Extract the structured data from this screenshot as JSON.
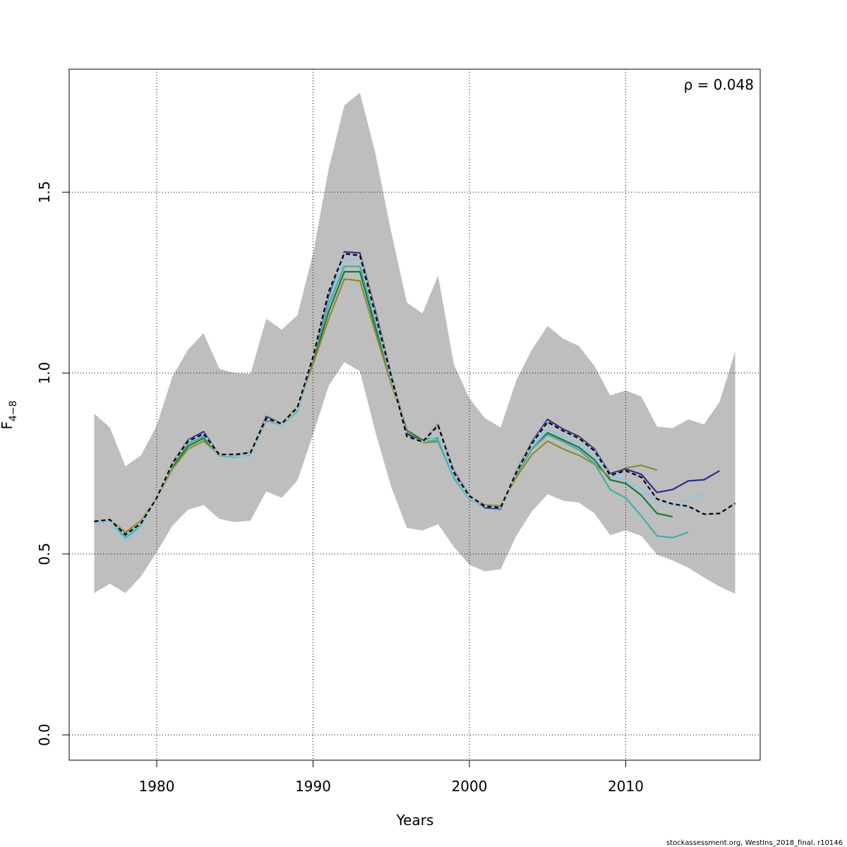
{
  "chart_data": {
    "type": "line",
    "title": "",
    "xlabel": "Years",
    "ylabel": {
      "main": "F",
      "sub": "4−8"
    },
    "annotation": "ρ = 0.048",
    "footer": "stockassessment.org, WestIns_2018_final, r10146",
    "xlim": [
      1974.4,
      2018.6
    ],
    "ylim": [
      -0.07,
      1.84
    ],
    "x_ticks": [
      1980,
      1990,
      2000,
      2010
    ],
    "y_ticks": [
      0.0,
      0.5,
      1.0,
      1.5
    ],
    "x_tick_labels": [
      "1980",
      "1990",
      "2000",
      "2010"
    ],
    "y_tick_labels": [
      "0.0",
      "0.5",
      "1.0",
      "1.5"
    ],
    "grid": true,
    "confidence_band": {
      "color": "#bebebe",
      "x": [
        1976,
        1977,
        1978,
        1979,
        1980,
        1981,
        1982,
        1983,
        1984,
        1985,
        1986,
        1987,
        1988,
        1989,
        1990,
        1991,
        1992,
        1993,
        1994,
        1995,
        1996,
        1997,
        1998,
        1999,
        2000,
        2001,
        2002,
        2003,
        2004,
        2005,
        2006,
        2007,
        2008,
        2009,
        2010,
        2011,
        2012,
        2013,
        2014,
        2015,
        2016,
        2017
      ],
      "lower": [
        0.392,
        0.418,
        0.392,
        0.438,
        0.505,
        0.578,
        0.622,
        0.635,
        0.597,
        0.588,
        0.592,
        0.673,
        0.655,
        0.703,
        0.83,
        0.965,
        1.03,
        1.005,
        0.835,
        0.685,
        0.572,
        0.565,
        0.582,
        0.52,
        0.47,
        0.452,
        0.458,
        0.55,
        0.618,
        0.665,
        0.647,
        0.642,
        0.612,
        0.552,
        0.565,
        0.55,
        0.498,
        0.482,
        0.462,
        0.435,
        0.41,
        0.39
      ],
      "upper": [
        0.888,
        0.85,
        0.742,
        0.773,
        0.855,
        0.99,
        1.065,
        1.11,
        1.012,
        1.0,
        0.998,
        1.15,
        1.12,
        1.16,
        1.33,
        1.565,
        1.74,
        1.775,
        1.605,
        1.39,
        1.195,
        1.165,
        1.27,
        1.025,
        0.93,
        0.875,
        0.85,
        0.98,
        1.065,
        1.13,
        1.095,
        1.075,
        1.02,
        0.938,
        0.952,
        0.935,
        0.852,
        0.848,
        0.872,
        0.858,
        0.92,
        1.06
      ]
    },
    "series": [
      {
        "color": "#1b7837",
        "width": 2.2,
        "x": [
          1976,
          1977,
          1978,
          1979,
          1980,
          1981,
          1982,
          1983,
          1984,
          1985,
          1986,
          1987,
          1988,
          1989,
          1990,
          1991,
          1992,
          1993,
          1994,
          1995,
          1996,
          1997,
          1998,
          1999,
          2000,
          2001,
          2002,
          2003,
          2004,
          2005,
          2006,
          2007,
          2008,
          2009,
          2010,
          2011,
          2012,
          2013
        ],
        "y": [
          0.59,
          0.595,
          0.553,
          0.585,
          0.655,
          0.74,
          0.798,
          0.82,
          0.772,
          0.772,
          0.782,
          0.868,
          0.862,
          0.905,
          1.03,
          1.17,
          1.28,
          1.28,
          1.125,
          0.975,
          0.842,
          0.815,
          0.822,
          0.718,
          0.66,
          0.635,
          0.633,
          0.72,
          0.79,
          0.835,
          0.815,
          0.795,
          0.76,
          0.705,
          0.695,
          0.662,
          0.612,
          0.603
        ]
      },
      {
        "color": "#8c8c2e",
        "width": 2.2,
        "x": [
          1976,
          1977,
          1978,
          1979,
          1980,
          1981,
          1982,
          1983,
          1984,
          1985,
          1986,
          1987,
          1988,
          1989,
          1990,
          1991,
          1992,
          1993,
          1994,
          1995,
          1996,
          1997,
          1998,
          1999,
          2000,
          2001,
          2002,
          2003,
          2004,
          2005,
          2006,
          2007,
          2008,
          2009,
          2010,
          2011,
          2012
        ],
        "y": [
          0.588,
          0.595,
          0.56,
          0.592,
          0.655,
          0.735,
          0.79,
          0.812,
          0.775,
          0.775,
          0.782,
          0.868,
          0.862,
          0.908,
          1.025,
          1.15,
          1.26,
          1.255,
          1.11,
          0.97,
          0.84,
          0.808,
          0.81,
          0.712,
          0.66,
          0.635,
          0.633,
          0.712,
          0.775,
          0.812,
          0.79,
          0.773,
          0.748,
          0.712,
          0.738,
          0.745,
          0.732
        ]
      },
      {
        "color": "#40b0a6",
        "width": 2.2,
        "x": [
          1976,
          1977,
          1978,
          1979,
          1980,
          1981,
          1982,
          1983,
          1984,
          1985,
          1986,
          1987,
          1988,
          1989,
          1990,
          1991,
          1992,
          1993,
          1994,
          1995,
          1996,
          1997,
          1998,
          1999,
          2000,
          2001,
          2002,
          2003,
          2004,
          2005,
          2006,
          2007,
          2008,
          2009,
          2010,
          2011,
          2012,
          2013,
          2014
        ],
        "y": [
          0.585,
          0.592,
          0.545,
          0.578,
          0.655,
          0.745,
          0.805,
          0.825,
          0.772,
          0.768,
          0.772,
          0.87,
          0.855,
          0.895,
          1.04,
          1.19,
          1.295,
          1.295,
          1.14,
          0.98,
          0.835,
          0.81,
          0.815,
          0.71,
          0.652,
          0.628,
          0.625,
          0.722,
          0.79,
          0.83,
          0.81,
          0.788,
          0.75,
          0.678,
          0.655,
          0.605,
          0.55,
          0.545,
          0.56
        ]
      },
      {
        "color": "#88c8e8",
        "width": 2.2,
        "x": [
          1976,
          1977,
          1978,
          1979,
          1980,
          1981,
          1982,
          1983,
          1984,
          1985,
          1986,
          1987,
          1988,
          1989,
          1990,
          1991,
          1992,
          1993,
          1994,
          1995,
          1996,
          1997,
          1998,
          1999,
          2000,
          2001,
          2002,
          2003,
          2004,
          2005,
          2006,
          2007,
          2008,
          2009,
          2010,
          2011,
          2012,
          2013,
          2014,
          2015
        ],
        "y": [
          0.585,
          0.59,
          0.535,
          0.575,
          0.655,
          0.75,
          0.81,
          0.83,
          0.775,
          0.77,
          0.77,
          0.875,
          0.855,
          0.9,
          1.045,
          1.205,
          1.315,
          1.315,
          1.15,
          0.985,
          0.83,
          0.81,
          0.825,
          0.718,
          0.655,
          0.625,
          0.622,
          0.725,
          0.8,
          0.845,
          0.825,
          0.805,
          0.77,
          0.715,
          0.705,
          0.68,
          0.645,
          0.635,
          0.65,
          0.665
        ]
      },
      {
        "color": "#2b2d8c",
        "width": 2.2,
        "x": [
          1976,
          1977,
          1978,
          1979,
          1980,
          1981,
          1982,
          1983,
          1984,
          1985,
          1986,
          1987,
          1988,
          1989,
          1990,
          1991,
          1992,
          1993,
          1994,
          1995,
          1996,
          1997,
          1998,
          1999,
          2000,
          2001,
          2002,
          2003,
          2004,
          2005,
          2006,
          2007,
          2008,
          2009,
          2010,
          2011,
          2012,
          2013,
          2014,
          2015,
          2016
        ],
        "y": [
          0.59,
          0.595,
          0.555,
          0.585,
          0.655,
          0.752,
          0.815,
          0.838,
          0.775,
          0.775,
          0.78,
          0.88,
          0.86,
          0.905,
          1.04,
          1.215,
          1.335,
          1.332,
          1.17,
          0.995,
          0.832,
          0.81,
          0.858,
          0.73,
          0.662,
          0.628,
          0.625,
          0.728,
          0.81,
          0.872,
          0.845,
          0.825,
          0.79,
          0.722,
          0.735,
          0.72,
          0.67,
          0.678,
          0.702,
          0.705,
          0.73
        ]
      },
      {
        "color": "#000000",
        "width": 2.2,
        "dashed": true,
        "x": [
          1976,
          1977,
          1978,
          1979,
          1980,
          1981,
          1982,
          1983,
          1984,
          1985,
          1986,
          1987,
          1988,
          1989,
          1990,
          1991,
          1992,
          1993,
          1994,
          1995,
          1996,
          1997,
          1998,
          1999,
          2000,
          2001,
          2002,
          2003,
          2004,
          2005,
          2006,
          2007,
          2008,
          2009,
          2010,
          2011,
          2012,
          2013,
          2014,
          2015,
          2016,
          2017
        ],
        "y": [
          0.59,
          0.595,
          0.553,
          0.585,
          0.655,
          0.75,
          0.812,
          0.832,
          0.775,
          0.775,
          0.78,
          0.875,
          0.86,
          0.905,
          1.045,
          1.225,
          1.33,
          1.325,
          1.16,
          0.99,
          0.825,
          0.81,
          0.855,
          0.725,
          0.66,
          0.632,
          0.628,
          0.725,
          0.805,
          0.865,
          0.84,
          0.82,
          0.785,
          0.718,
          0.73,
          0.712,
          0.652,
          0.638,
          0.632,
          0.61,
          0.612,
          0.64
        ]
      }
    ]
  }
}
